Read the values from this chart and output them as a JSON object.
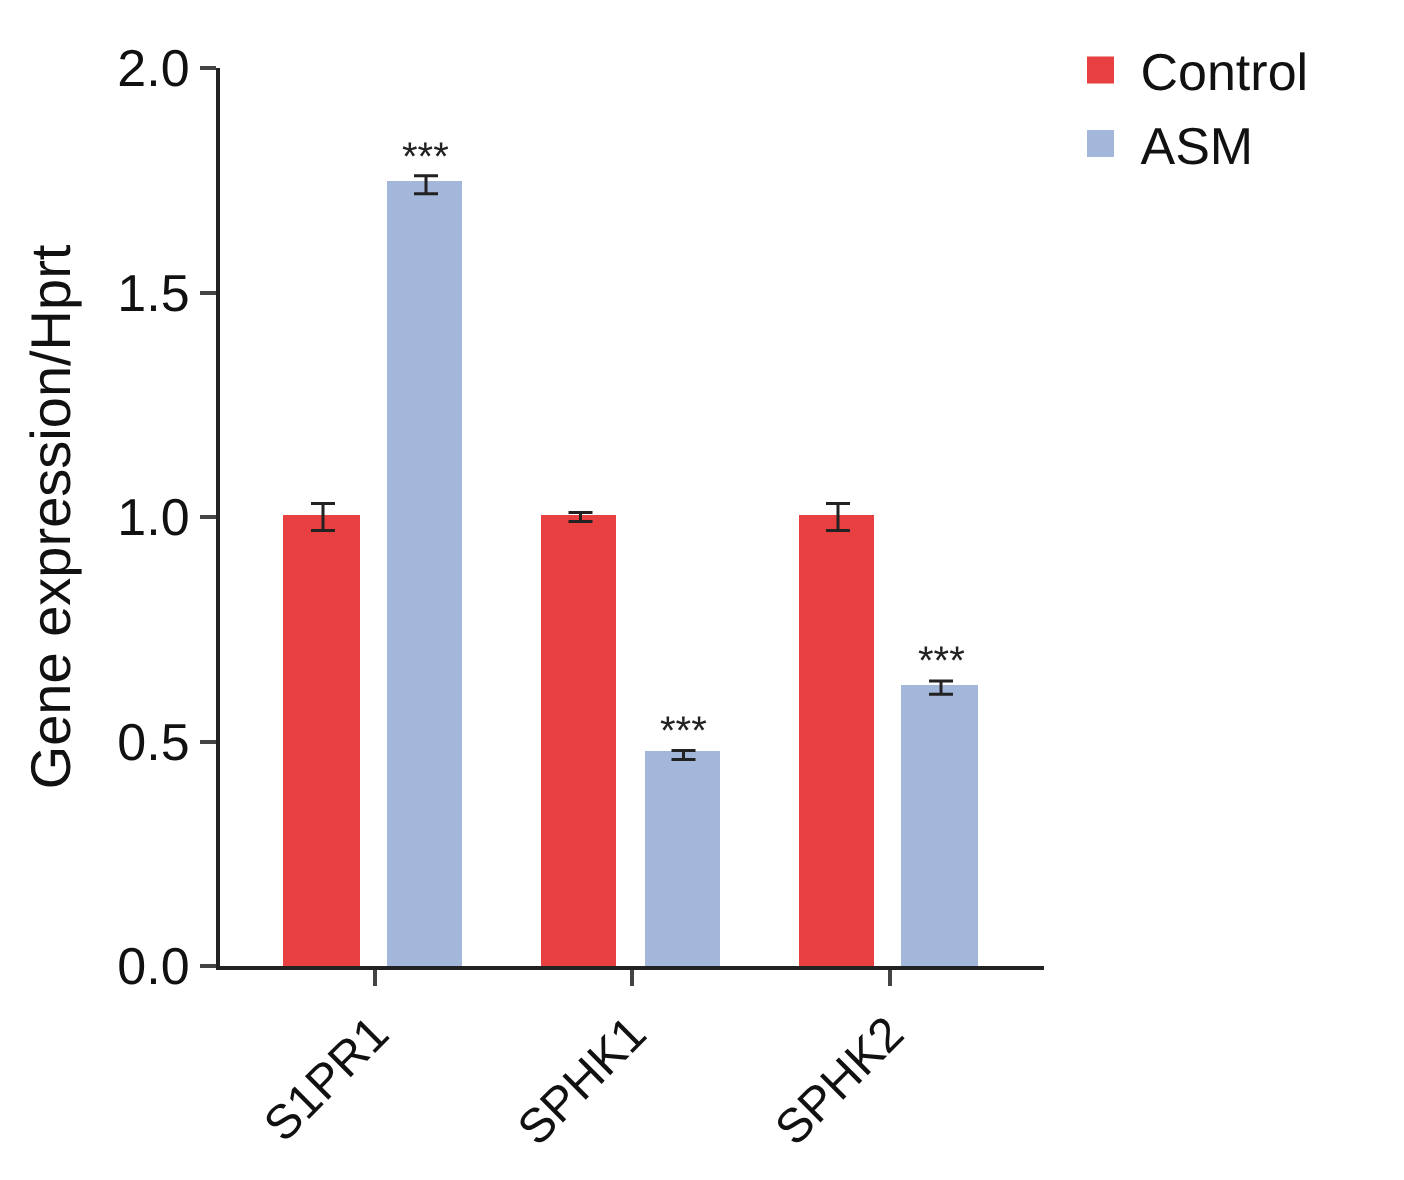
{
  "chart_data": {
    "type": "bar",
    "ylabel": "Gene expression/Hprt",
    "categories": [
      "S1PR1",
      "SPHK1",
      "SPHK2"
    ],
    "series": [
      {
        "name": "Control",
        "color": "#e84040",
        "values": [
          1.0,
          1.0,
          1.0
        ],
        "errors": [
          0.03,
          0.01,
          0.03
        ]
      },
      {
        "name": "ASM",
        "color": "#a3b7da",
        "values": [
          1.74,
          0.47,
          0.62
        ],
        "errors": [
          0.02,
          0.01,
          0.015
        ]
      }
    ],
    "annotations": [
      "***",
      "***",
      "***"
    ],
    "ylim": [
      0,
      2.0
    ],
    "yticks": [
      {
        "value": 0,
        "label": "0.0"
      },
      {
        "value": 0.5,
        "label": "0.5"
      },
      {
        "value": 1.0,
        "label": "1.0"
      },
      {
        "value": 1.5,
        "label": "1.5"
      },
      {
        "value": 2.0,
        "label": "2.0"
      }
    ],
    "legend": "top right"
  }
}
